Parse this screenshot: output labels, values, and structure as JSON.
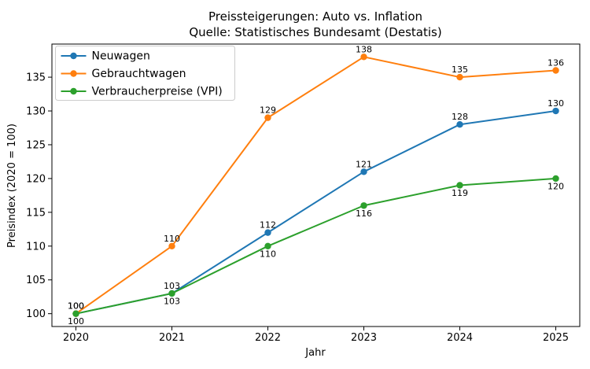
{
  "figure": {
    "background": "#ffffff",
    "text_color": "#000000",
    "spine_color": "#000000",
    "legend_border_color": "#cccccc",
    "legend_background": "#ffffff"
  },
  "chart_data": {
    "type": "line",
    "title": "Preissteigerungen: Auto vs. Inflation",
    "subtitle": "Quelle: Statistisches Bundesamt (Destatis)",
    "xlabel": "Jahr",
    "ylabel": "Preisindex (2020 = 100)",
    "x": [
      2020,
      2021,
      2022,
      2023,
      2024,
      2025
    ],
    "series": [
      {
        "name": "Neuwagen",
        "color": "#1f77b4",
        "values": [
          100,
          103,
          112,
          121,
          128,
          130
        ],
        "point_label_position": "above"
      },
      {
        "name": "Gebrauchtwagen",
        "color": "#ff7f0e",
        "values": [
          100,
          110,
          129,
          138,
          135,
          136
        ],
        "point_label_position": "above"
      },
      {
        "name": "Verbraucherpreise (VPI)",
        "color": "#2ca02c",
        "values": [
          100,
          103,
          110,
          116,
          119,
          120
        ],
        "point_label_position": "below"
      }
    ],
    "xticks": [
      2020,
      2021,
      2022,
      2023,
      2024,
      2025
    ],
    "yticks": [
      100,
      105,
      110,
      115,
      120,
      125,
      130,
      135
    ],
    "xlim": [
      2019.75,
      2025.25
    ],
    "ylim": [
      98.1,
      139.9
    ],
    "grid": false,
    "legend_position": "upper left",
    "point_labels_shown": true,
    "marker": "circle"
  }
}
